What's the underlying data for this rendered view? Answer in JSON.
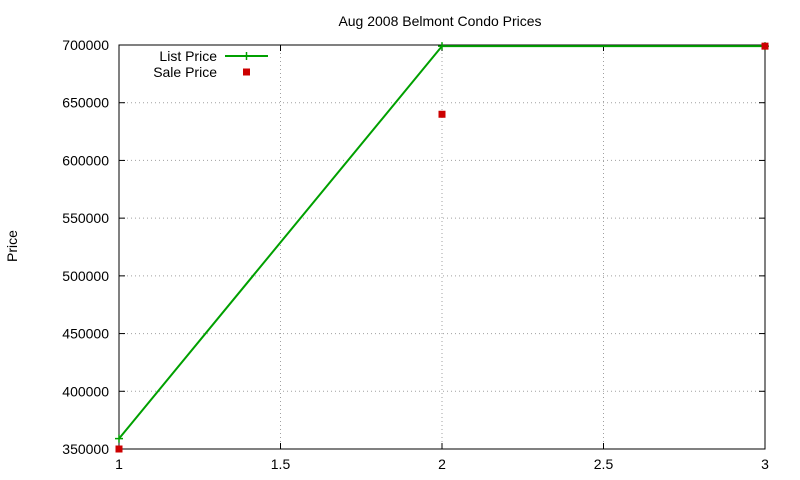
{
  "chart_data": {
    "type": "line",
    "title": "Aug 2008 Belmont Condo Prices",
    "xlabel": "",
    "ylabel": "Price",
    "xlim": [
      1,
      3
    ],
    "ylim": [
      350000,
      700000
    ],
    "x_ticks": [
      1,
      1.5,
      2,
      2.5,
      3
    ],
    "x_tick_labels": [
      "1",
      "1.5",
      "2",
      "2.5",
      "3"
    ],
    "y_ticks": [
      350000,
      400000,
      450000,
      500000,
      550000,
      600000,
      650000,
      700000
    ],
    "y_tick_labels": [
      "350000",
      "400000",
      "450000",
      "500000",
      "550000",
      "600000",
      "650000",
      "700000"
    ],
    "grid": true,
    "legend_position": "top-left",
    "series": [
      {
        "name": "List Price",
        "style": "linespoints",
        "marker": "plus",
        "color": "#00a000",
        "x": [
          1,
          2,
          3
        ],
        "y": [
          359000,
          699000,
          699000
        ]
      },
      {
        "name": "Sale Price",
        "style": "points",
        "marker": "square",
        "color": "#cc0000",
        "x": [
          1,
          2,
          3
        ],
        "y": [
          350000,
          640000,
          699000
        ]
      }
    ]
  }
}
